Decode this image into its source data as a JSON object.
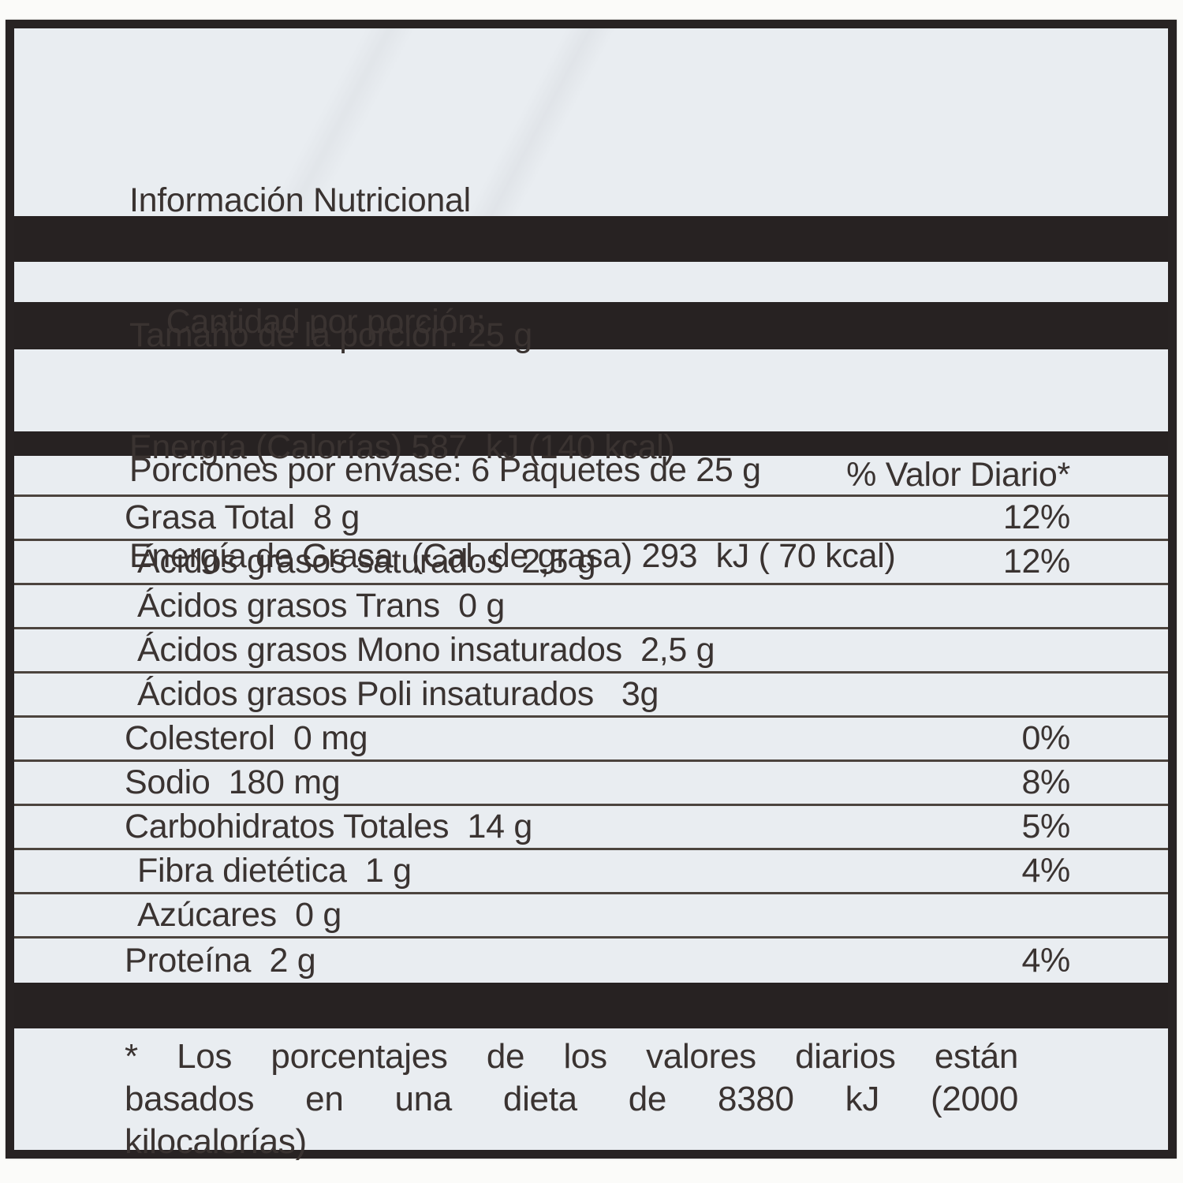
{
  "colors": {
    "label_background": "#e9edf1",
    "bar_black": "#272222",
    "text": "#3a3331",
    "separator_line": "#4c443e",
    "page_background": "#fbfbf9"
  },
  "header": {
    "title": "Información Nutricional",
    "serving_size": "Tamaño de la porción: 25 g",
    "servings_per_container": "Porciones por envase: 6 Paquetes de 25 g"
  },
  "amount_per_serving_label": "Cantidad por porción:",
  "energy": {
    "calories_line": "Energía (Calorías) 587  kJ (140 kcal)",
    "fat_calories_line": "Energía de Grasa  (Cal. de grasa) 293  kJ ( 70 kcal)"
  },
  "table": {
    "daily_value_header": "% Valor Diario*",
    "rows": [
      {
        "label": "Grasa Total  8 g",
        "value": "12%",
        "indent": 0
      },
      {
        "label": "Ácidos grasos saturados  2,5 g",
        "value": "12%",
        "indent": 1
      },
      {
        "label": "Ácidos grasos Trans  0 g",
        "value": "",
        "indent": 1
      },
      {
        "label": "Ácidos grasos Mono insaturados  2,5 g",
        "value": "",
        "indent": 1
      },
      {
        "label": "Ácidos grasos Poli insaturados   3g",
        "value": "",
        "indent": 1
      },
      {
        "label": "Colesterol  0 mg",
        "value": "0%",
        "indent": 0
      },
      {
        "label": "Sodio  180 mg",
        "value": "8%",
        "indent": 0
      },
      {
        "label": "Carbohidratos Totales  14 g",
        "value": "5%",
        "indent": 0
      },
      {
        "label": "Fibra dietética  1 g",
        "value": "4%",
        "indent": 1
      },
      {
        "label": "Azúcares  0 g",
        "value": "",
        "indent": 1
      },
      {
        "label": "Proteína  2 g",
        "value": "4%",
        "indent": 0
      }
    ]
  },
  "footnote": {
    "full_text": "* Los porcentajes de los valores diarios están basados en una dieta de 8380 kJ (2000 kilocalorías)",
    "lines": [
      "* Los porcentajes de los valores diarios están",
      "basados en una dieta de 8380 kJ (2000",
      "kilocalorías)"
    ]
  }
}
